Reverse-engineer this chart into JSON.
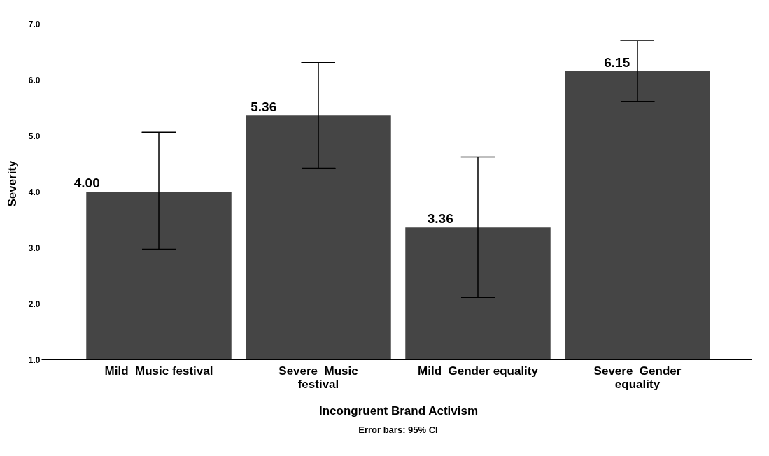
{
  "chart_data": {
    "type": "bar",
    "xlabel": "Incongruent Brand Activism",
    "ylabel": "Severity",
    "categories": [
      "Mild_Music festival",
      "Severe_Music festival",
      "Mild_Gender equality",
      "Severe_Gender equality"
    ],
    "values": [
      4.0,
      5.36,
      3.36,
      6.15
    ],
    "value_labels": [
      "4.00",
      "5.36",
      "3.36",
      "6.15"
    ],
    "errors": [
      [
        2.97,
        5.06
      ],
      [
        4.42,
        6.31
      ],
      [
        2.11,
        4.62
      ],
      [
        5.61,
        6.7
      ]
    ],
    "color": "#454545",
    "ylim": [
      1,
      7.3
    ],
    "yticks": [
      {
        "value": 1,
        "label": "1.0"
      },
      {
        "value": 2,
        "label": "2.0"
      },
      {
        "value": 3,
        "label": "3.0"
      },
      {
        "value": 4,
        "label": "4.0"
      },
      {
        "value": 5,
        "label": "5.0"
      },
      {
        "value": 6,
        "label": "6.0"
      },
      {
        "value": 7,
        "label": "7.0"
      }
    ],
    "annotations": [
      "Error bars: 95% CI"
    ],
    "grid": false
  }
}
